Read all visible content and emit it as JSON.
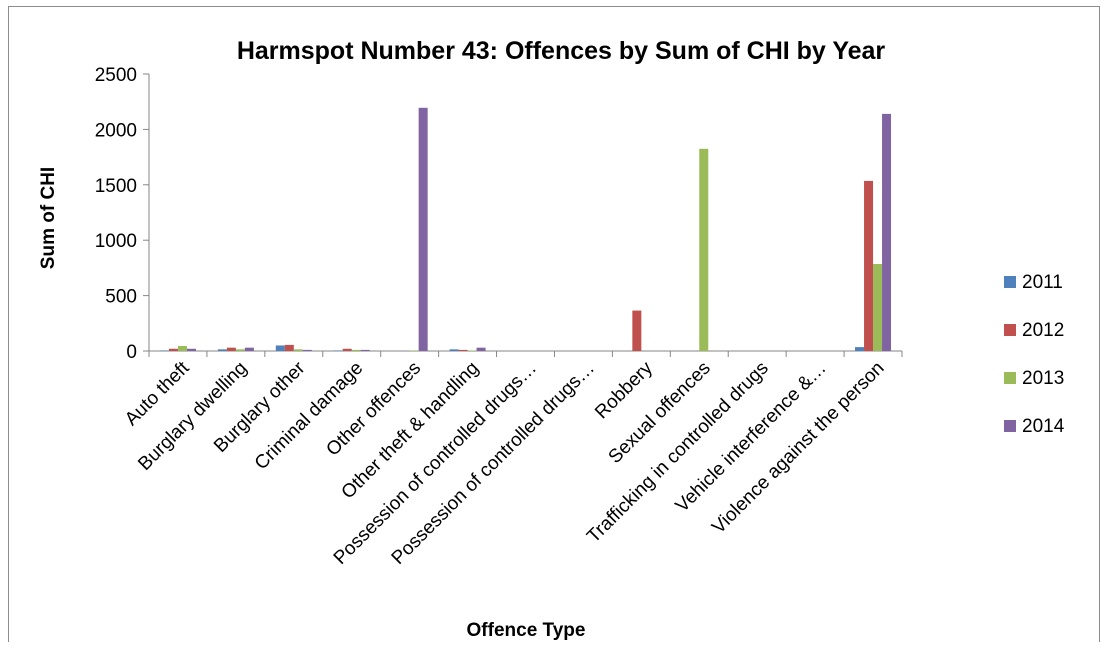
{
  "chart_data": {
    "type": "bar",
    "title": "Harmspot Number 43: Offences by Sum of CHI by Year",
    "xlabel": "Offence Type",
    "ylabel": "Sum of CHI",
    "ylim": [
      0,
      2500
    ],
    "yticks": [
      0,
      500,
      1000,
      1500,
      2000,
      2500
    ],
    "grid": false,
    "legend": "right",
    "categories": [
      "Auto theft",
      "Burglary dwelling",
      "Burglary other",
      "Criminal damage",
      "Other offences",
      "Other theft & handling",
      "Possession of controlled drugs…",
      "Possession of controlled drugs…",
      "Robbery",
      "Sexual offences",
      "Trafficking in controlled drugs",
      "Vehicle interference &…",
      "Violence against the person"
    ],
    "series": [
      {
        "name": "2011",
        "color": "#4f81bd",
        "values": [
          5,
          15,
          50,
          5,
          0,
          15,
          0,
          0,
          0,
          0,
          0,
          0,
          35
        ]
      },
      {
        "name": "2012",
        "color": "#c0504d",
        "values": [
          20,
          30,
          55,
          20,
          0,
          10,
          0,
          0,
          365,
          0,
          0,
          0,
          1535
        ]
      },
      {
        "name": "2013",
        "color": "#9bbb59",
        "values": [
          45,
          15,
          15,
          10,
          5,
          5,
          0,
          0,
          0,
          1825,
          0,
          0,
          785
        ]
      },
      {
        "name": "2014",
        "color": "#8064a2",
        "values": [
          20,
          30,
          10,
          10,
          2195,
          30,
          0,
          0,
          0,
          0,
          0,
          0,
          2140
        ]
      }
    ]
  }
}
